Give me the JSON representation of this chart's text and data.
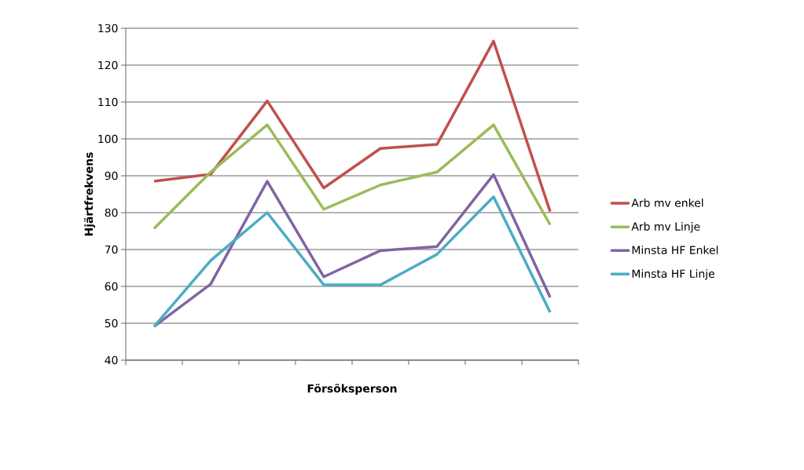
{
  "chart_data": {
    "type": "line",
    "xlabel": "Försöksperson",
    "ylabel": "Hjärtfrekvens",
    "categories": [
      null,
      null,
      null,
      null,
      null,
      null,
      null,
      null
    ],
    "series": [
      {
        "name": "Arb mv enkel",
        "color": "#c0504d",
        "values": [
          88.5,
          90.4,
          110.3,
          86.7,
          97.4,
          98.5,
          126.5,
          80.3
        ]
      },
      {
        "name": "Arb mv Linje",
        "color": "#9bbb59",
        "values": [
          75.7,
          91,
          103.8,
          80.9,
          87.5,
          91,
          103.8,
          76.7
        ]
      },
      {
        "name": "Minsta HF Enkel",
        "color": "#8064a2",
        "values": [
          49.1,
          60.6,
          88.5,
          62.6,
          69.7,
          70.8,
          90.3,
          57
        ]
      },
      {
        "name": "Minsta HF Linje",
        "color": "#4bacc6",
        "values": [
          49.1,
          67,
          80,
          60.4,
          60.4,
          68.7,
          84.3,
          53
        ]
      }
    ],
    "ylim": [
      40,
      130
    ],
    "yticks": [
      40,
      50,
      60,
      70,
      80,
      90,
      100,
      110,
      120,
      130
    ],
    "grid": "y",
    "legend": "right",
    "tick_labels": "y",
    "marker": "none",
    "line_style": "solid"
  }
}
